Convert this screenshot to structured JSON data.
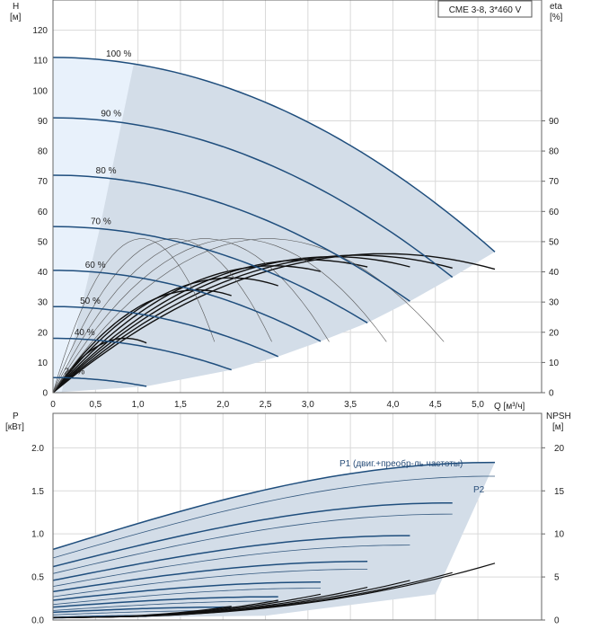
{
  "chart_data": [
    {
      "type": "line",
      "legend": "CME 3-8, 3*460 V",
      "y_label_left": [
        "H",
        "[м]"
      ],
      "y_label_right": [
        "eta",
        "[%]"
      ],
      "x_label": "Q [м³/ч]",
      "xlim": [
        0,
        5.75
      ],
      "ylim_left": [
        0,
        130
      ],
      "ylim_right": [
        0,
        130
      ],
      "x_ticks": [
        0,
        0.5,
        1.0,
        1.5,
        2.0,
        2.5,
        3.0,
        3.5,
        4.0,
        4.5,
        5.0
      ],
      "x_tick_labels": [
        "0",
        "0,5",
        "1,0",
        "1,5",
        "2,0",
        "2,5",
        "3,0",
        "3,5",
        "4,0",
        "4,5",
        "5,0"
      ],
      "y_ticks_left": [
        0,
        10,
        20,
        30,
        40,
        50,
        60,
        70,
        80,
        90,
        100,
        110,
        120
      ],
      "y_ticks_right": [
        0,
        10,
        20,
        30,
        40,
        50,
        60,
        70,
        80,
        90
      ],
      "grid": true,
      "speed_curves": [
        {
          "name": "100 %",
          "h0": 111,
          "qmax": 5.2
        },
        {
          "name": "90 %",
          "h0": 91,
          "qmax": 4.7
        },
        {
          "name": "80 %",
          "h0": 72,
          "qmax": 4.2
        },
        {
          "name": "70 %",
          "h0": 55,
          "qmax": 3.7
        },
        {
          "name": "60 %",
          "h0": 40.5,
          "qmax": 3.15
        },
        {
          "name": "50 %",
          "h0": 28.5,
          "qmax": 2.65
        },
        {
          "name": "40 %",
          "h0": 18,
          "qmax": 2.1
        },
        {
          "name": "21 %",
          "h0": 5,
          "qmax": 1.1
        }
      ],
      "eta_curves": [
        {
          "qmax": 5.2,
          "peak": 46,
          "qpeak": 3.9
        },
        {
          "qmax": 4.7,
          "peak": 45.5,
          "qpeak": 3.6
        },
        {
          "qmax": 4.2,
          "peak": 45,
          "qpeak": 3.3
        },
        {
          "qmax": 3.7,
          "peak": 44,
          "qpeak": 3.0
        },
        {
          "qmax": 3.15,
          "peak": 42,
          "qpeak": 2.6
        },
        {
          "qmax": 2.65,
          "peak": 38,
          "qpeak": 2.1
        },
        {
          "qmax": 2.1,
          "peak": 34,
          "qpeak": 1.7
        },
        {
          "qmax": 1.1,
          "peak": 18,
          "qpeak": 0.85
        }
      ]
    },
    {
      "type": "line",
      "y_label_left": [
        "P",
        "[кВт]"
      ],
      "y_label_right": [
        "NPSH",
        "[м]"
      ],
      "xlim": [
        0,
        5.75
      ],
      "ylim_left": [
        0,
        2.4
      ],
      "ylim_right": [
        0,
        24
      ],
      "y_ticks_left": [
        0.0,
        0.5,
        1.0,
        1.5,
        2.0
      ],
      "y_tick_labels_left": [
        "0.0",
        "0.5",
        "1.0",
        "1.5",
        "2.0"
      ],
      "y_ticks_right": [
        0,
        5,
        10,
        15,
        20
      ],
      "grid": true,
      "series_labels": {
        "p1": "P1 (двиг.+преобр-ль частоты)",
        "p2": "P2"
      },
      "p1_curves": [
        {
          "p0": 0.82,
          "pmax": 1.83,
          "qmax": 5.2
        },
        {
          "p0": 0.62,
          "pmax": 1.36,
          "qmax": 4.7
        },
        {
          "p0": 0.46,
          "pmax": 0.98,
          "qmax": 4.2
        },
        {
          "p0": 0.33,
          "pmax": 0.68,
          "qmax": 3.7
        },
        {
          "p0": 0.23,
          "pmax": 0.44,
          "qmax": 3.15
        },
        {
          "p0": 0.15,
          "pmax": 0.27,
          "qmax": 2.65
        },
        {
          "p0": 0.09,
          "pmax": 0.15,
          "qmax": 2.1
        },
        {
          "p0": 0.03,
          "pmax": 0.05,
          "qmax": 1.1
        }
      ],
      "p2_curves": [
        {
          "p0": 0.72,
          "pmax": 1.67,
          "qmax": 5.2
        },
        {
          "p0": 0.54,
          "pmax": 1.23,
          "qmax": 4.7
        },
        {
          "p0": 0.39,
          "pmax": 0.87,
          "qmax": 4.2
        },
        {
          "p0": 0.27,
          "pmax": 0.59,
          "qmax": 3.7
        },
        {
          "p0": 0.18,
          "pmax": 0.37,
          "qmax": 3.15
        },
        {
          "p0": 0.11,
          "pmax": 0.22,
          "qmax": 2.65
        },
        {
          "p0": 0.06,
          "pmax": 0.11,
          "qmax": 2.1
        },
        {
          "p0": 0.02,
          "pmax": 0.04,
          "qmax": 1.1
        }
      ],
      "npsh_curves": [
        {
          "qmax": 5.2,
          "nmax": 6.6
        },
        {
          "qmax": 4.7,
          "nmax": 5.5
        },
        {
          "qmax": 4.2,
          "nmax": 4.6
        },
        {
          "qmax": 3.7,
          "nmax": 3.8
        },
        {
          "qmax": 3.15,
          "nmax": 3.0
        },
        {
          "qmax": 2.65,
          "nmax": 2.3
        },
        {
          "qmax": 2.1,
          "nmax": 1.6
        }
      ]
    }
  ]
}
